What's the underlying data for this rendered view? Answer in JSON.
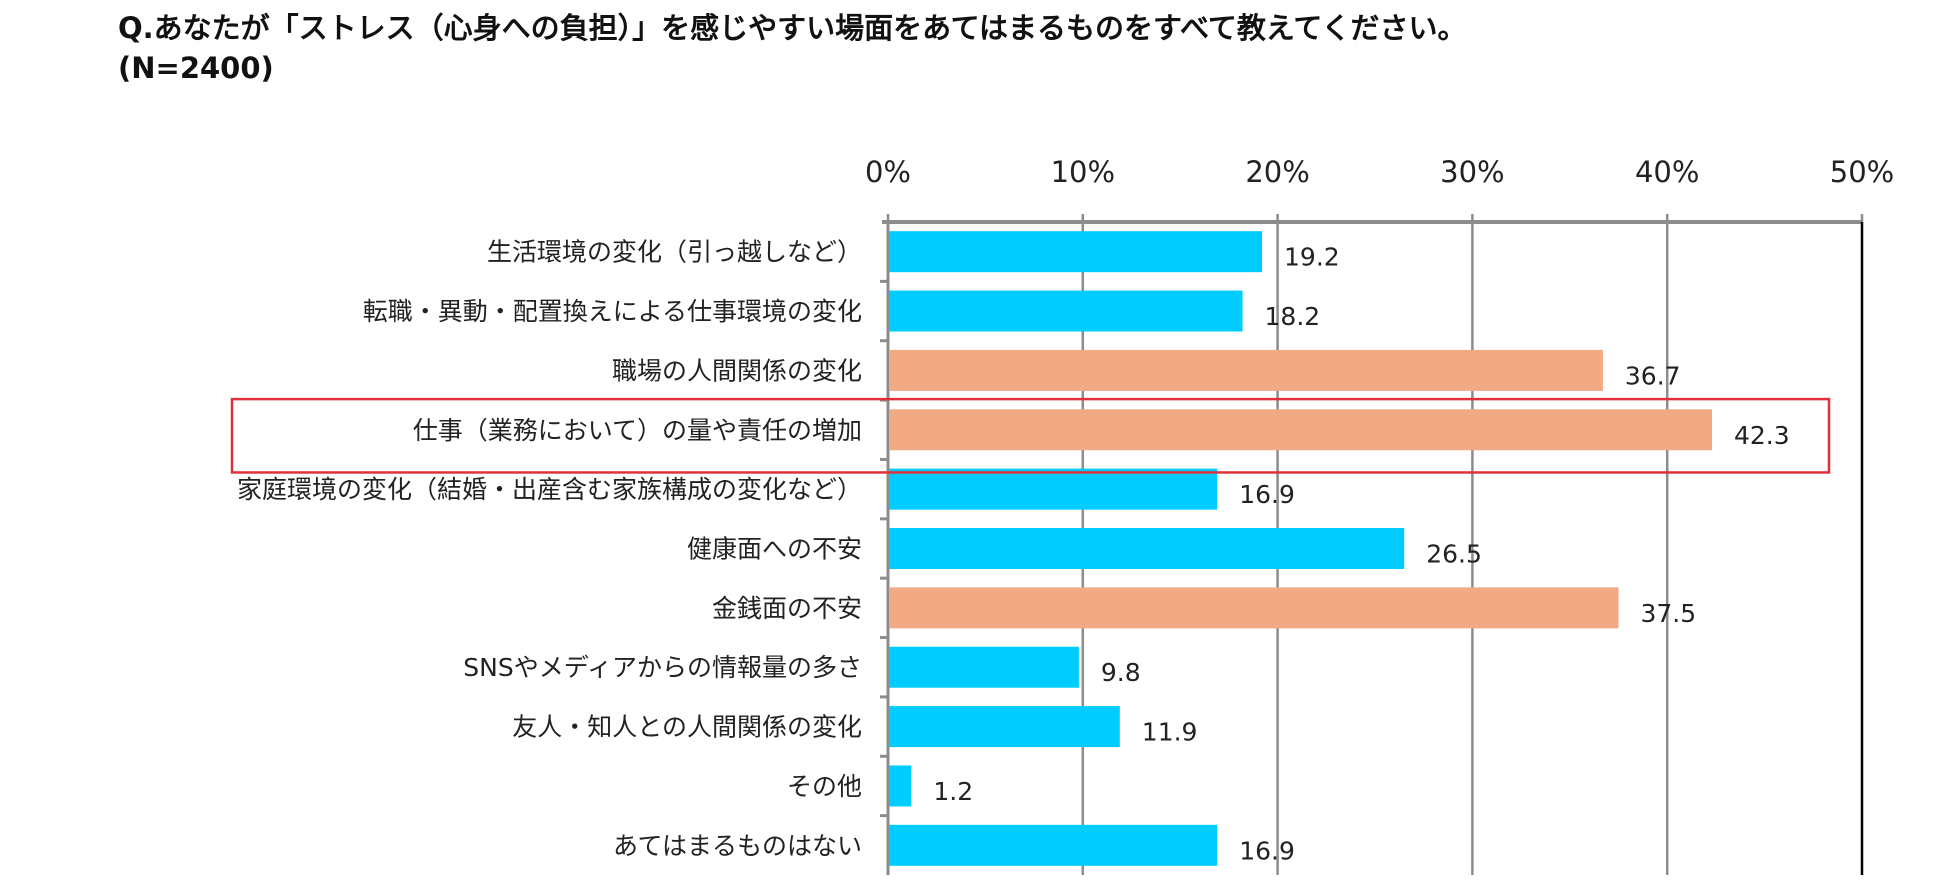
{
  "chart_data": {
    "type": "bar",
    "orientation": "horizontal",
    "title": "Q.あなたが「ストレス（心身への負担）」を感じやすい場面をあてはまるものをすべて教えてください。",
    "subtitle": "(N=2400)",
    "categories": [
      "生活環境の変化（引っ越しなど）",
      "転職・異動・配置換えによる仕事環境の変化",
      "職場の人間関係の変化",
      "仕事（業務において）の量や責任の増加",
      "家庭環境の変化（結婚・出産含む家族構成の変化など）",
      "健康面への不安",
      "金銭面の不安",
      "SNSやメディアからの情報量の多さ",
      "友人・知人との人間関係の変化",
      "その他",
      "あてはまるものはない"
    ],
    "values": [
      19.2,
      18.2,
      36.7,
      42.3,
      16.9,
      26.5,
      37.5,
      9.8,
      11.9,
      1.2,
      16.9
    ],
    "highlight": [
      false,
      false,
      true,
      true,
      false,
      false,
      true,
      false,
      false,
      false,
      false
    ],
    "boxed_category_index": 3,
    "xlim": [
      0,
      50
    ],
    "xticks": [
      "0%",
      "10%",
      "20%",
      "30%",
      "40%",
      "50%"
    ],
    "xaxis_position": "top",
    "grid": true,
    "colors": {
      "default": "#00CCFF",
      "highlight": "#F2AA84",
      "box": "#E0303A",
      "grid": "#8C8C8C"
    }
  }
}
